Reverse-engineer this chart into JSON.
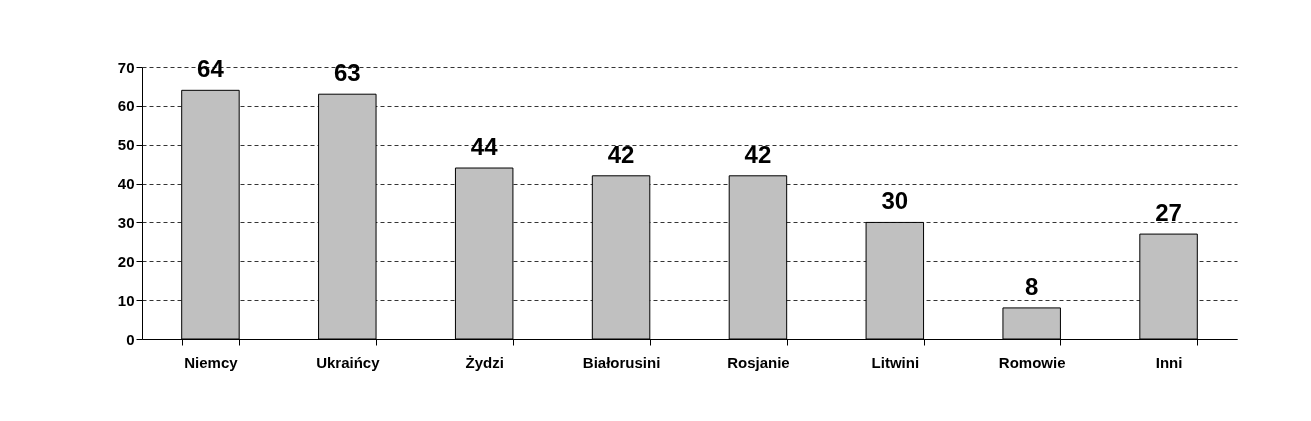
{
  "chart_data": {
    "type": "bar",
    "categories": [
      "Niemcy",
      "Ukraińcy",
      "Żydzi",
      "Białorusini",
      "Rosjanie",
      "Litwini",
      "Romowie",
      "Inni"
    ],
    "values": [
      64,
      63,
      44,
      42,
      42,
      30,
      8,
      27
    ],
    "color": "#c0c0c0",
    "ylim": [
      0,
      70
    ],
    "yticks": [
      0,
      10,
      20,
      30,
      40,
      50,
      60,
      70
    ],
    "grid": "y",
    "data_labels": true
  }
}
